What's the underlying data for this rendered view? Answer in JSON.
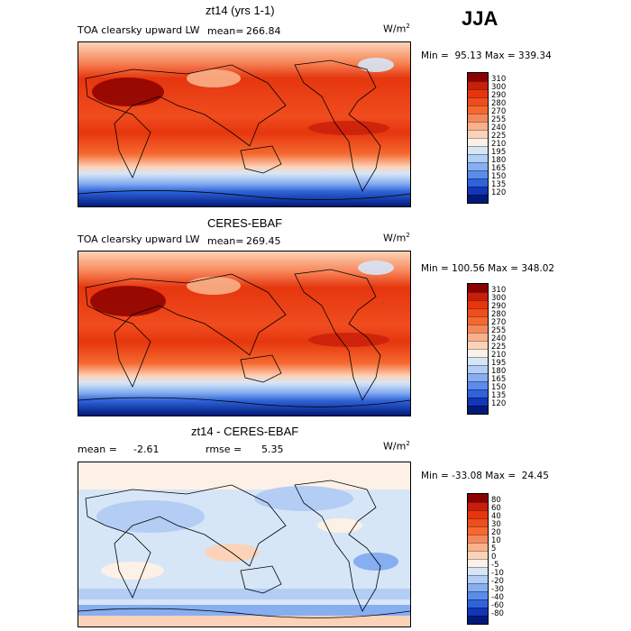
{
  "season": "JJA",
  "panels": [
    {
      "title": "zt14 (yrs 1-1)",
      "variable": "TOA clearsky upward LW",
      "stat_left": "mean=",
      "stat_left_value": "266.84",
      "units": "W/m",
      "units_exp": "2",
      "minmax": "Min =  95.13 Max = 339.34",
      "levels": [
        "310",
        "300",
        "290",
        "280",
        "270",
        "255",
        "240",
        "225",
        "210",
        "195",
        "180",
        "165",
        "150",
        "135",
        "120"
      ],
      "colors": [
        "#8b0000",
        "#c81e0a",
        "#e6360e",
        "#f04c1e",
        "#f5692f",
        "#f7875a",
        "#fab08a",
        "#fcd3b8",
        "#fdf0e6",
        "#d6e6f7",
        "#b3cdf5",
        "#86aef0",
        "#5b8ce9",
        "#2f63d9",
        "#1236b7",
        "#001a7a"
      ]
    },
    {
      "title": "CERES-EBAF",
      "variable": "TOA clearsky upward LW",
      "stat_left": "mean=",
      "stat_left_value": "269.45",
      "units": "W/m",
      "units_exp": "2",
      "minmax": "Min = 100.56 Max = 348.02",
      "levels": [
        "310",
        "300",
        "290",
        "280",
        "270",
        "255",
        "240",
        "225",
        "210",
        "195",
        "180",
        "165",
        "150",
        "135",
        "120"
      ],
      "colors": [
        "#8b0000",
        "#c81e0a",
        "#e6360e",
        "#f04c1e",
        "#f5692f",
        "#f7875a",
        "#fab08a",
        "#fcd3b8",
        "#fdf0e6",
        "#d6e6f7",
        "#b3cdf5",
        "#86aef0",
        "#5b8ce9",
        "#2f63d9",
        "#1236b7",
        "#001a7a"
      ]
    },
    {
      "title": "zt14 - CERES-EBAF",
      "stat_left": "mean =",
      "stat_left_value": "-2.61",
      "stat_right": "rmse =",
      "stat_right_value": "5.35",
      "units": "W/m",
      "units_exp": "2",
      "minmax": "Min = -33.08 Max =  24.45",
      "levels": [
        "80",
        "60",
        "40",
        "30",
        "20",
        "10",
        "5",
        "0",
        "-5",
        "-10",
        "-20",
        "-30",
        "-40",
        "-60",
        "-80"
      ],
      "colors": [
        "#8b0000",
        "#c81e0a",
        "#e6360e",
        "#f04c1e",
        "#f5692f",
        "#f7875a",
        "#fab08a",
        "#fcd3b8",
        "#fdf0e6",
        "#d6e6f7",
        "#b3cdf5",
        "#86aef0",
        "#5b8ce9",
        "#2f63d9",
        "#1236b7",
        "#001a7a"
      ]
    }
  ]
}
